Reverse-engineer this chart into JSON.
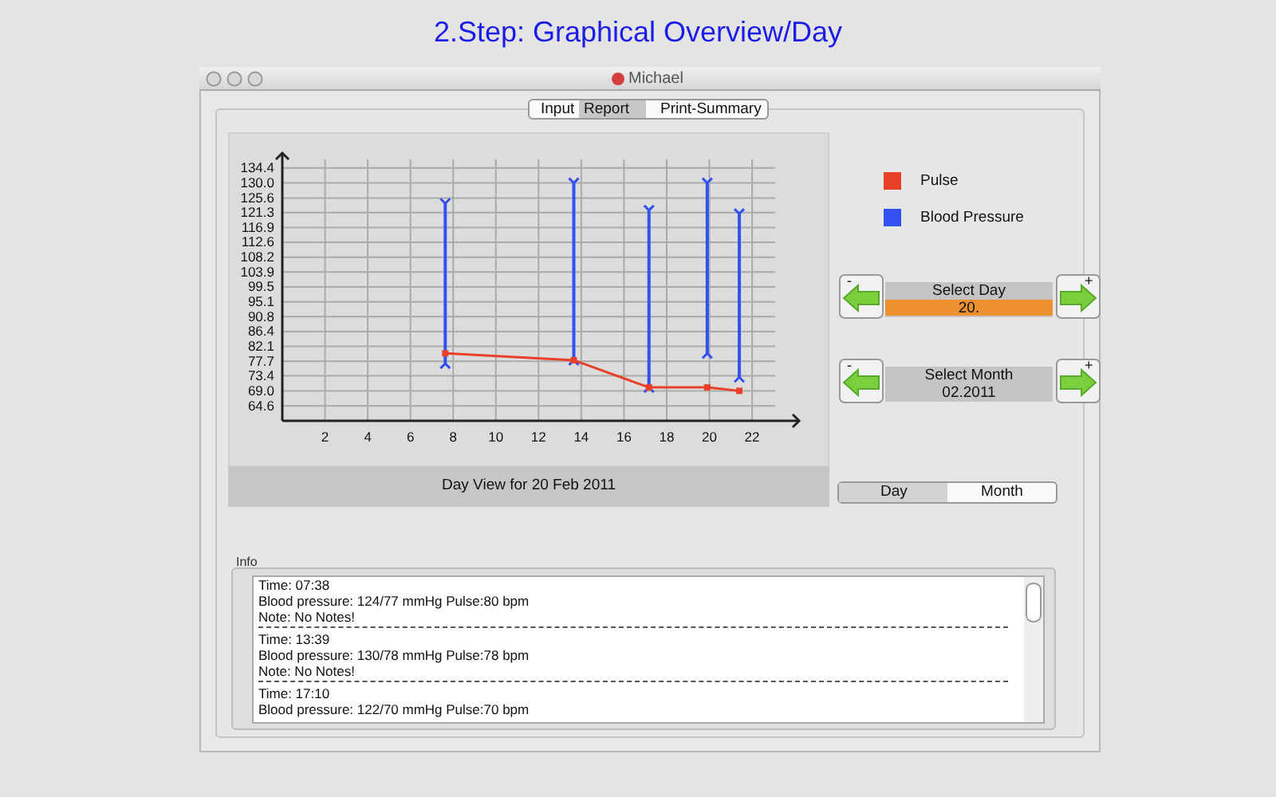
{
  "chart_data": {
    "type": "line",
    "title": "2.Step: Graphical Overview/Day",
    "xlabel": "Day View for 20 Feb 2011",
    "annotations": [
      "Michael",
      "Input",
      "Report",
      "Print-Summary",
      "Select Day",
      "20.",
      "Select Month",
      "02.2011",
      "Day",
      "Month",
      "Info",
      "-",
      "+",
      "Time: 07:38",
      "Blood pressure: 124/77 mmHg Pulse:80 bpm",
      "Note: No Notes!",
      "Time: 13:39",
      "Blood pressure: 130/78 mmHg Pulse:78 bpm",
      "Note: No Notes!",
      "Time: 17:10",
      "Blood pressure: 122/70 mmHg Pulse:70 bpm"
    ],
    "series": [
      {
        "name": "Pulse",
        "color": "#e8402a",
        "x": [
          7.63,
          13.65,
          17.17,
          19.9,
          21.4
        ],
        "values": [
          80,
          78,
          70,
          70,
          69
        ]
      },
      {
        "name": "Blood Pressure",
        "type": "bar",
        "color": "#3350f0",
        "x": [
          7.63,
          13.65,
          17.17,
          19.9,
          21.4
        ],
        "base": [
          77,
          78,
          70,
          80,
          73
        ],
        "values": [
          47,
          52,
          52,
          50,
          48
        ]
      }
    ],
    "xlim": [
      0,
      24.2
    ],
    "xticks": [
      2,
      4,
      6,
      8,
      10,
      12,
      14,
      16,
      18,
      20,
      22
    ],
    "ylim": [
      60.2,
      138.8
    ],
    "yticks": [
      64.6,
      {
        "value": 69,
        "label": "69.0"
      },
      73.4,
      77.7,
      82.1,
      86.4,
      90.8,
      95.1,
      99.5,
      103.9,
      108.2,
      112.6,
      116.9,
      121.3,
      125.6,
      {
        "value": 130,
        "label": "130.0"
      },
      134.4
    ],
    "grid": true,
    "legend": "right",
    "marker": "square"
  }
}
